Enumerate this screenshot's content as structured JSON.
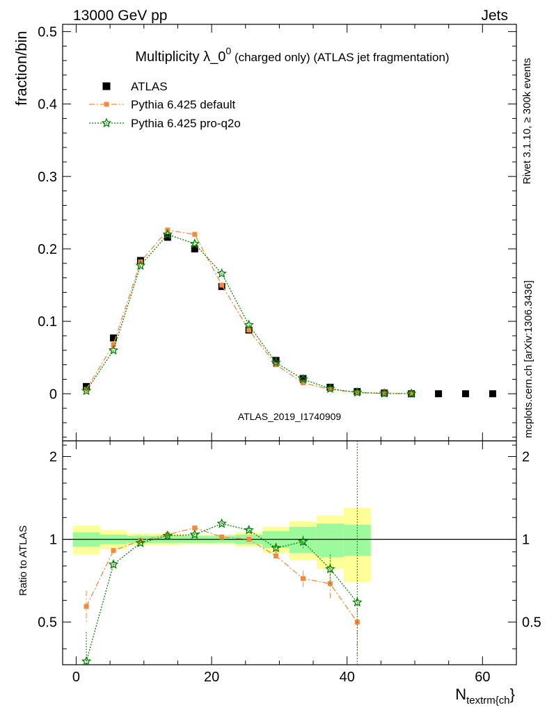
{
  "header": {
    "left": "13000 GeV pp",
    "right": "Jets"
  },
  "side_labels": {
    "rivet": "Rivet 3.1.10, ≥ 300k events",
    "mcplots": "mcplots.cern.ch [arXiv:1306.3436]"
  },
  "watermark": "ATLAS_2019_I1740909",
  "chart_data": {
    "type": "line",
    "title": {
      "main": "Multiplicity λ_0",
      "sup": "0",
      "rest": " (charged only) (ATLAS jet fragmentation)"
    },
    "x_label": {
      "base": "N",
      "sub": "textrm{ch",
      "tail": "}"
    },
    "xlim": [
      -2,
      65
    ],
    "x_ticks": [
      0,
      20,
      40,
      60
    ],
    "x_tick_labels": [
      "0",
      "20",
      "40",
      "60"
    ],
    "main_panel": {
      "ylabel": "fraction/bin",
      "ylim": [
        -0.065,
        0.51
      ],
      "y_ticks": [
        0,
        0.1,
        0.2,
        0.3,
        0.4,
        0.5
      ],
      "y_tick_labels": [
        "0",
        "0.1",
        "0.2",
        "0.3",
        "0.4",
        "0.5"
      ]
    },
    "ratio_panel": {
      "ylabel": "Ratio to ATLAS",
      "ylim": [
        0.35,
        2.28
      ],
      "y_ticks": [
        0.5,
        1,
        2
      ],
      "y_tick_labels": [
        "0.5",
        "1",
        "2"
      ],
      "reference": 1
    },
    "legend": {
      "placement": "top-left",
      "entries": [
        "ATLAS",
        "Pythia 6.425 default",
        "Pythia 6.425 pro-q2o"
      ]
    },
    "series": [
      {
        "name": "ATLAS",
        "color": "#000000",
        "marker": "square",
        "x": [
          1.5,
          5.5,
          9.5,
          13.5,
          17.5,
          21.5,
          25.5,
          29.5,
          33.5,
          37.5,
          41.5,
          45.5,
          49.5,
          53.5,
          57.5,
          61.5
        ],
        "y": [
          0.01,
          0.077,
          0.184,
          0.216,
          0.2,
          0.148,
          0.088,
          0.046,
          0.021,
          0.009,
          0.003,
          0.001,
          0.0,
          0.0,
          0.0,
          0.0
        ]
      },
      {
        "name": "Pythia 6.425 default",
        "color": "#f58a3c",
        "marker": "square",
        "x": [
          1.5,
          5.5,
          9.5,
          13.5,
          17.5,
          21.5,
          25.5,
          29.5,
          33.5,
          37.5,
          41.5,
          45.5,
          49.5
        ],
        "y": [
          0.006,
          0.068,
          0.182,
          0.226,
          0.22,
          0.15,
          0.088,
          0.04,
          0.015,
          0.006,
          0.0015,
          0.0005,
          0.0002
        ],
        "ratio_x": [
          1.5,
          5.5,
          9.5,
          13.5,
          17.5,
          21.5,
          25.5,
          29.5,
          33.5,
          37.5,
          41.5
        ],
        "ratio": [
          0.57,
          0.91,
          0.99,
          1.04,
          1.1,
          1.02,
          1.0,
          0.87,
          0.72,
          0.69,
          0.5
        ],
        "ratio_err": [
          0.08,
          0.02,
          0.01,
          0.01,
          0.01,
          0.01,
          0.01,
          0.02,
          0.05,
          0.08,
          0.12
        ]
      },
      {
        "name": "Pythia 6.425 pro-q2o",
        "color": "#008000",
        "marker": "star",
        "x": [
          1.5,
          5.5,
          9.5,
          13.5,
          17.5,
          21.5,
          25.5,
          29.5,
          33.5,
          37.5,
          41.5,
          45.5,
          49.5
        ],
        "y": [
          0.004,
          0.06,
          0.177,
          0.22,
          0.207,
          0.166,
          0.095,
          0.043,
          0.02,
          0.007,
          0.0018,
          0.0005,
          0.0002
        ],
        "ratio_x": [
          1.5,
          5.5,
          9.5,
          13.5,
          17.5,
          21.5,
          25.5,
          29.5,
          33.5,
          37.5,
          41.5
        ],
        "ratio": [
          0.36,
          0.81,
          0.97,
          1.03,
          1.04,
          1.14,
          1.08,
          0.93,
          0.98,
          0.78,
          0.59
        ],
        "ratio_err": [
          0.1,
          0.02,
          0.01,
          0.01,
          0.01,
          0.01,
          0.02,
          0.04,
          0.05,
          0.1,
          2.0
        ]
      }
    ],
    "uncertainty_bands": {
      "x_edges": [
        -0.5,
        3.5,
        7.5,
        11.5,
        15.5,
        19.5,
        23.5,
        27.5,
        31.5,
        35.5,
        39.5,
        43.5
      ],
      "inner_color": "#9cf99c",
      "outer_color": "#ffff99",
      "inner_lo": [
        0.94,
        0.96,
        0.97,
        0.97,
        0.97,
        0.97,
        0.96,
        0.93,
        0.89,
        0.86,
        0.87
      ],
      "inner_hi": [
        1.06,
        1.04,
        1.03,
        1.03,
        1.03,
        1.03,
        1.04,
        1.07,
        1.11,
        1.14,
        1.13
      ],
      "outer_lo": [
        0.88,
        0.92,
        0.95,
        0.95,
        0.96,
        0.96,
        0.94,
        0.89,
        0.84,
        0.78,
        0.7
      ],
      "outer_hi": [
        1.12,
        1.08,
        1.05,
        1.05,
        1.04,
        1.04,
        1.06,
        1.11,
        1.16,
        1.22,
        1.3
      ]
    }
  }
}
